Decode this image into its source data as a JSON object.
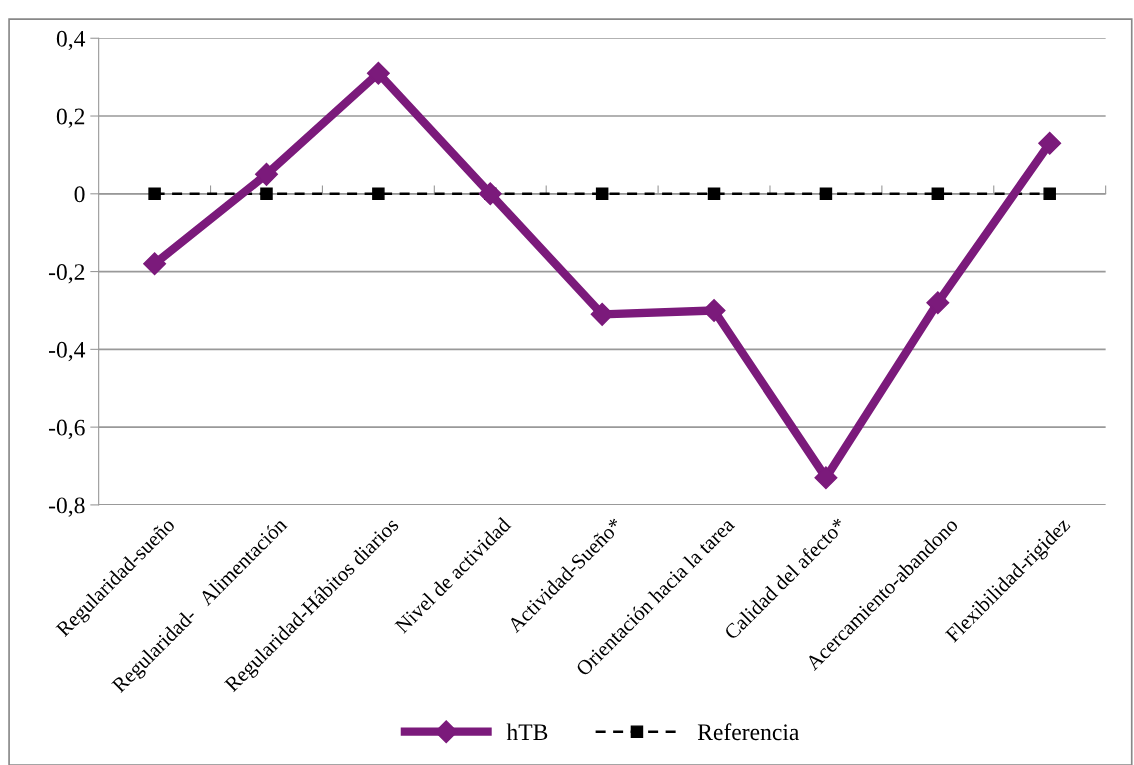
{
  "chart_data": {
    "type": "line",
    "categories": [
      "Regularidad-sueño",
      "Regularidad-   Alimentación",
      "Regularidad-Hábitos diarios",
      "Nivel de actividad",
      "Actividad-Sueño*",
      "Orientación hacia la tarea",
      "Calidad del afecto*",
      "Acercamiento-abandono",
      "Flexibilidad-rigidez"
    ],
    "series": [
      {
        "name": "hTB",
        "color": "#7b1a7b",
        "marker": "diamond",
        "line_style": "solid",
        "values": [
          -0.18,
          0.05,
          0.31,
          0,
          -0.31,
          -0.3,
          -0.73,
          -0.28,
          0.13
        ]
      },
      {
        "name": "Referencia",
        "color": "#000000",
        "marker": "square",
        "line_style": "dashed",
        "values": [
          0,
          0,
          0,
          0,
          0,
          0,
          0,
          0,
          0
        ]
      }
    ],
    "ylim": [
      -0.8,
      0.4
    ],
    "yticks": [
      {
        "value": -0.8,
        "label": "-0,8"
      },
      {
        "value": -0.6,
        "label": "-0,6"
      },
      {
        "value": -0.4,
        "label": "-0,4"
      },
      {
        "value": -0.2,
        "label": "-0,2"
      },
      {
        "value": 0,
        "label": "0"
      },
      {
        "value": 0.2,
        "label": "0,2"
      },
      {
        "value": 0.4,
        "label": "0,4"
      }
    ],
    "grid": "y",
    "legend": "bottom"
  }
}
